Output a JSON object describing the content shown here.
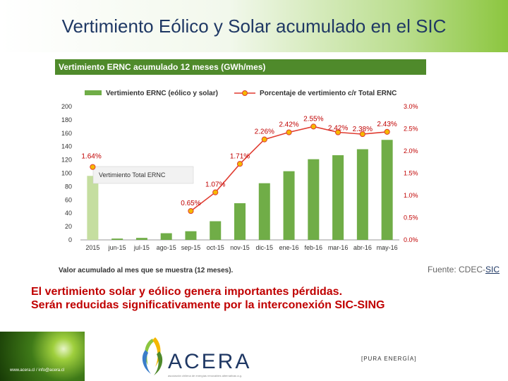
{
  "slide": {
    "title": "Vertimiento Eólico y Solar acumulado en el SIC",
    "source_prefix": "Fuente: CDEC-",
    "source_link": "SIC",
    "statement_line1": "El vertimiento solar y eólico genera importantes pérdidas.",
    "statement_line2": "Serán reducidas significativamente por la interconexión SIC-SING"
  },
  "footer": {
    "url": "www.acera.cl / info@acera.cl",
    "logo_text": "ACERA",
    "logo_subtitle": "asociación chilena de energías renovables alternativas a.g.",
    "tagline": "[PURA ENERGÍA]"
  },
  "colors": {
    "bar_main": "#70ad47",
    "bar_first": "#c5dea0",
    "line": "#e03c31",
    "marker": "#f5b800",
    "header": "#4f8a2b"
  },
  "chart_data": {
    "type": "bar+line",
    "title": "Vertimiento ERNC acumulado 12 meses (GWh/mes)",
    "note": "Valor acumulado al mes que se muestra (12 meses).",
    "annotation": "Vertimiento Total ERNC",
    "categories": [
      "2015",
      "jun-15",
      "jul-15",
      "ago-15",
      "sep-15",
      "oct-15",
      "nov-15",
      "dic-15",
      "ene-16",
      "feb-16",
      "mar-16",
      "abr-16",
      "may-16"
    ],
    "series": [
      {
        "name": "Vertimiento ERNC (eólico y solar)",
        "type": "bar",
        "axis": "left",
        "values": [
          96,
          2,
          3,
          10,
          13,
          28,
          55,
          85,
          103,
          121,
          127,
          136,
          150
        ]
      },
      {
        "name": "Porcentaje de vertimiento c/r Total ERNC",
        "type": "line",
        "axis": "right",
        "values": [
          1.64,
          null,
          null,
          null,
          0.65,
          1.07,
          1.71,
          2.26,
          2.42,
          2.55,
          2.42,
          2.38,
          2.43
        ],
        "labels": [
          "1.64%",
          "",
          "",
          "",
          "0.65%",
          "1.07%",
          "1.71%",
          "2.26%",
          "2.42%",
          "2.55%",
          "2.42%",
          "2.38%",
          "2.43%"
        ]
      }
    ],
    "y_left": {
      "min": 0,
      "max": 200,
      "ticks": [
        "0",
        "20",
        "40",
        "60",
        "80",
        "100",
        "120",
        "140",
        "160",
        "180",
        "200"
      ]
    },
    "y_right": {
      "min": 0,
      "max": 3.0,
      "ticks": [
        "0.0%",
        "0.5%",
        "1.0%",
        "1.5%",
        "2.0%",
        "2.5%",
        "3.0%"
      ]
    },
    "grid": false,
    "legend_position": "top"
  }
}
